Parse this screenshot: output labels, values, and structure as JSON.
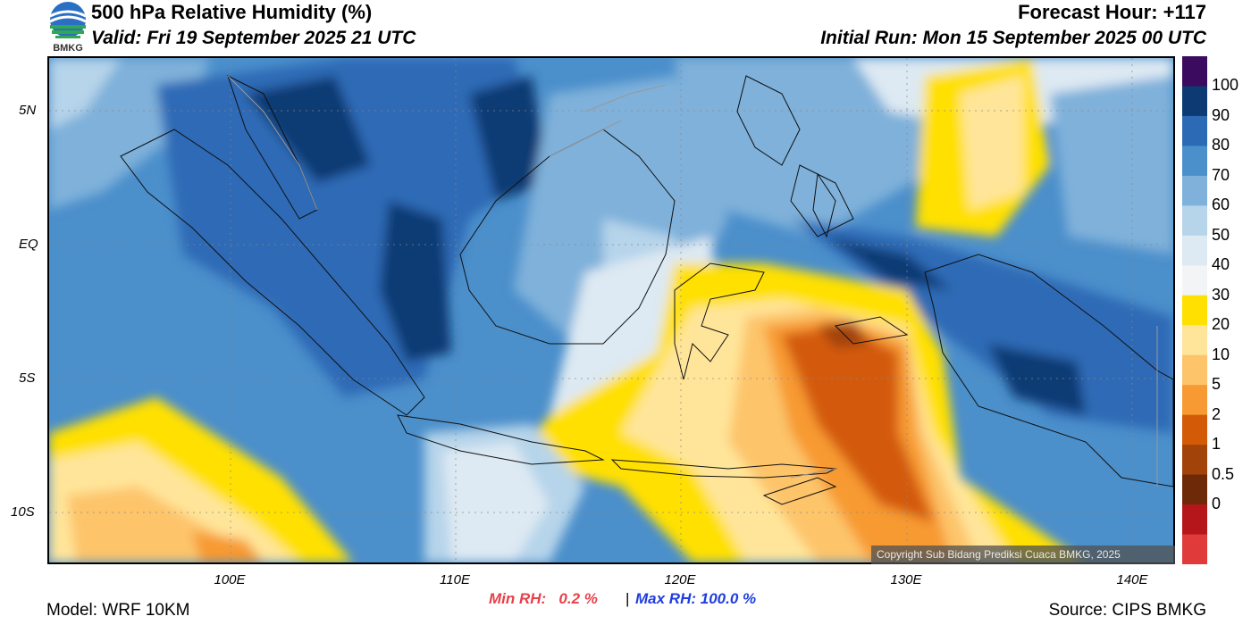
{
  "header": {
    "title": "500 hPa Relative Humidity (%)",
    "valid": "Valid: Fri 19 September 2025 21 UTC",
    "forecast_hour": "Forecast Hour: +117",
    "initial_run": "Initial Run: Mon 15 September 2025 00 UTC",
    "logo_text": "BMKG"
  },
  "map": {
    "lat_labels": [
      "5N",
      "EQ",
      "5S",
      "10S"
    ],
    "lon_labels": [
      "100E",
      "110E",
      "120E",
      "130E",
      "140E"
    ],
    "copyright": "Copyright Sub Bidang Prediksi Cuaca BMKG, 2025"
  },
  "colorbar": {
    "levels": [
      "100",
      "90",
      "80",
      "70",
      "60",
      "50",
      "40",
      "30",
      "20",
      "10",
      "5",
      "2",
      "1",
      "0.5",
      "0"
    ],
    "colors": {
      "gt100": "#3a0b5e",
      "90_100": "#0d3a73",
      "80_90": "#2d6ab6",
      "70_80": "#4b8fcb",
      "60_70": "#7fb1da",
      "50_60": "#b6d4ea",
      "40_50": "#dde9f3",
      "30_40": "#f2f4f6",
      "20_30": "#ffe000",
      "10_20": "#ffe59a",
      "5_10": "#fdc46a",
      "2_5": "#f79a33",
      "1_2": "#d35a07",
      "0_5_1": "#a24309",
      "0_0_5": "#6e2908",
      "lt0": "#b5161c",
      "neg": "#e03a3a"
    }
  },
  "stats": {
    "min_label": "Min RH:",
    "min_value": "0.2 %",
    "separator": "|",
    "max_label": "Max RH:",
    "max_value": "100.0 %"
  },
  "footer": {
    "model": "Model: WRF 10KM",
    "source": "Source: CIPS BMKG"
  }
}
